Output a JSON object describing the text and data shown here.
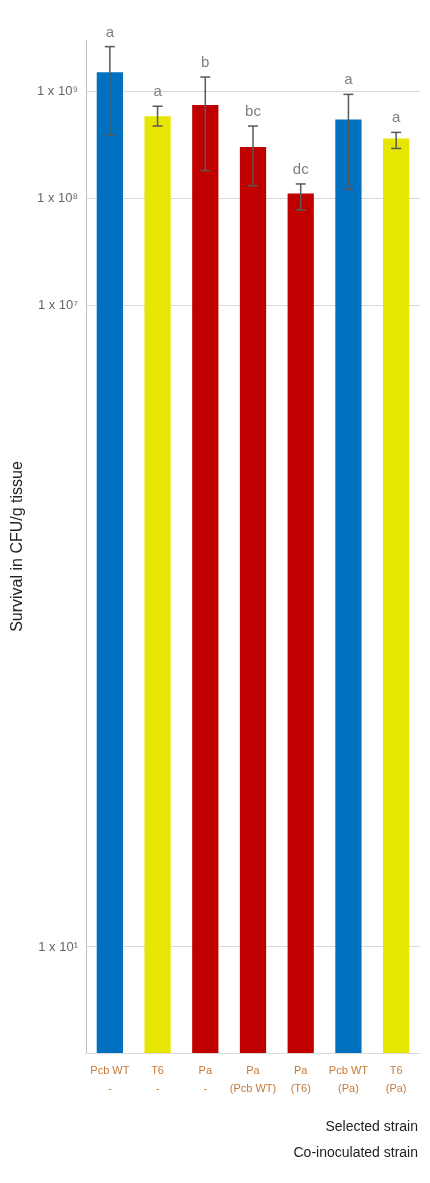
{
  "chart_data": {
    "type": "bar",
    "log": "y",
    "ylabel": "Survival in CFU/g tissue",
    "categories": [
      "Pcb WT\n-",
      "T6\n-",
      "Pa\n-",
      "Pa\n(Pcb WT)",
      "Pa\n(T6)",
      "Pcb WT\n(Pa)",
      "T6\n(Pa)"
    ],
    "values": [
      1500000000.0,
      580000000.0,
      740000000.0,
      300000000.0,
      110000000.0,
      540000000.0,
      360000000.0
    ],
    "errors": [
      [
        390000000.0,
        2600000000.0
      ],
      [
        470000000.0,
        720000000.0
      ],
      [
        180000000.0,
        1350000000.0
      ],
      [
        130000000.0,
        470000000.0
      ],
      [
        77000000.0,
        135000000.0
      ],
      [
        120000000.0,
        930000000.0
      ],
      [
        290000000.0,
        410000000.0
      ]
    ],
    "value_labels": [
      "a",
      "a",
      "b",
      "bc",
      "dc",
      "a",
      "a"
    ],
    "colors": [
      "#0070c0",
      "#e6e600",
      "#c00000",
      "#c00000",
      "#c00000",
      "#0070c0",
      "#e6e600"
    ],
    "ylim": [
      1,
      3000000000.0
    ],
    "yticks": [
      {
        "value": 10,
        "label": "1 x 10¹"
      },
      {
        "value": 10000000.0,
        "label": "1 x 10⁷"
      },
      {
        "value": 100000000.0,
        "label": "1 x 10⁸"
      },
      {
        "value": 1000000000.0,
        "label": "1 x 10⁹"
      }
    ],
    "grid": "y",
    "annotations": [
      "Selected strain",
      "Co-inoculated strain"
    ]
  }
}
